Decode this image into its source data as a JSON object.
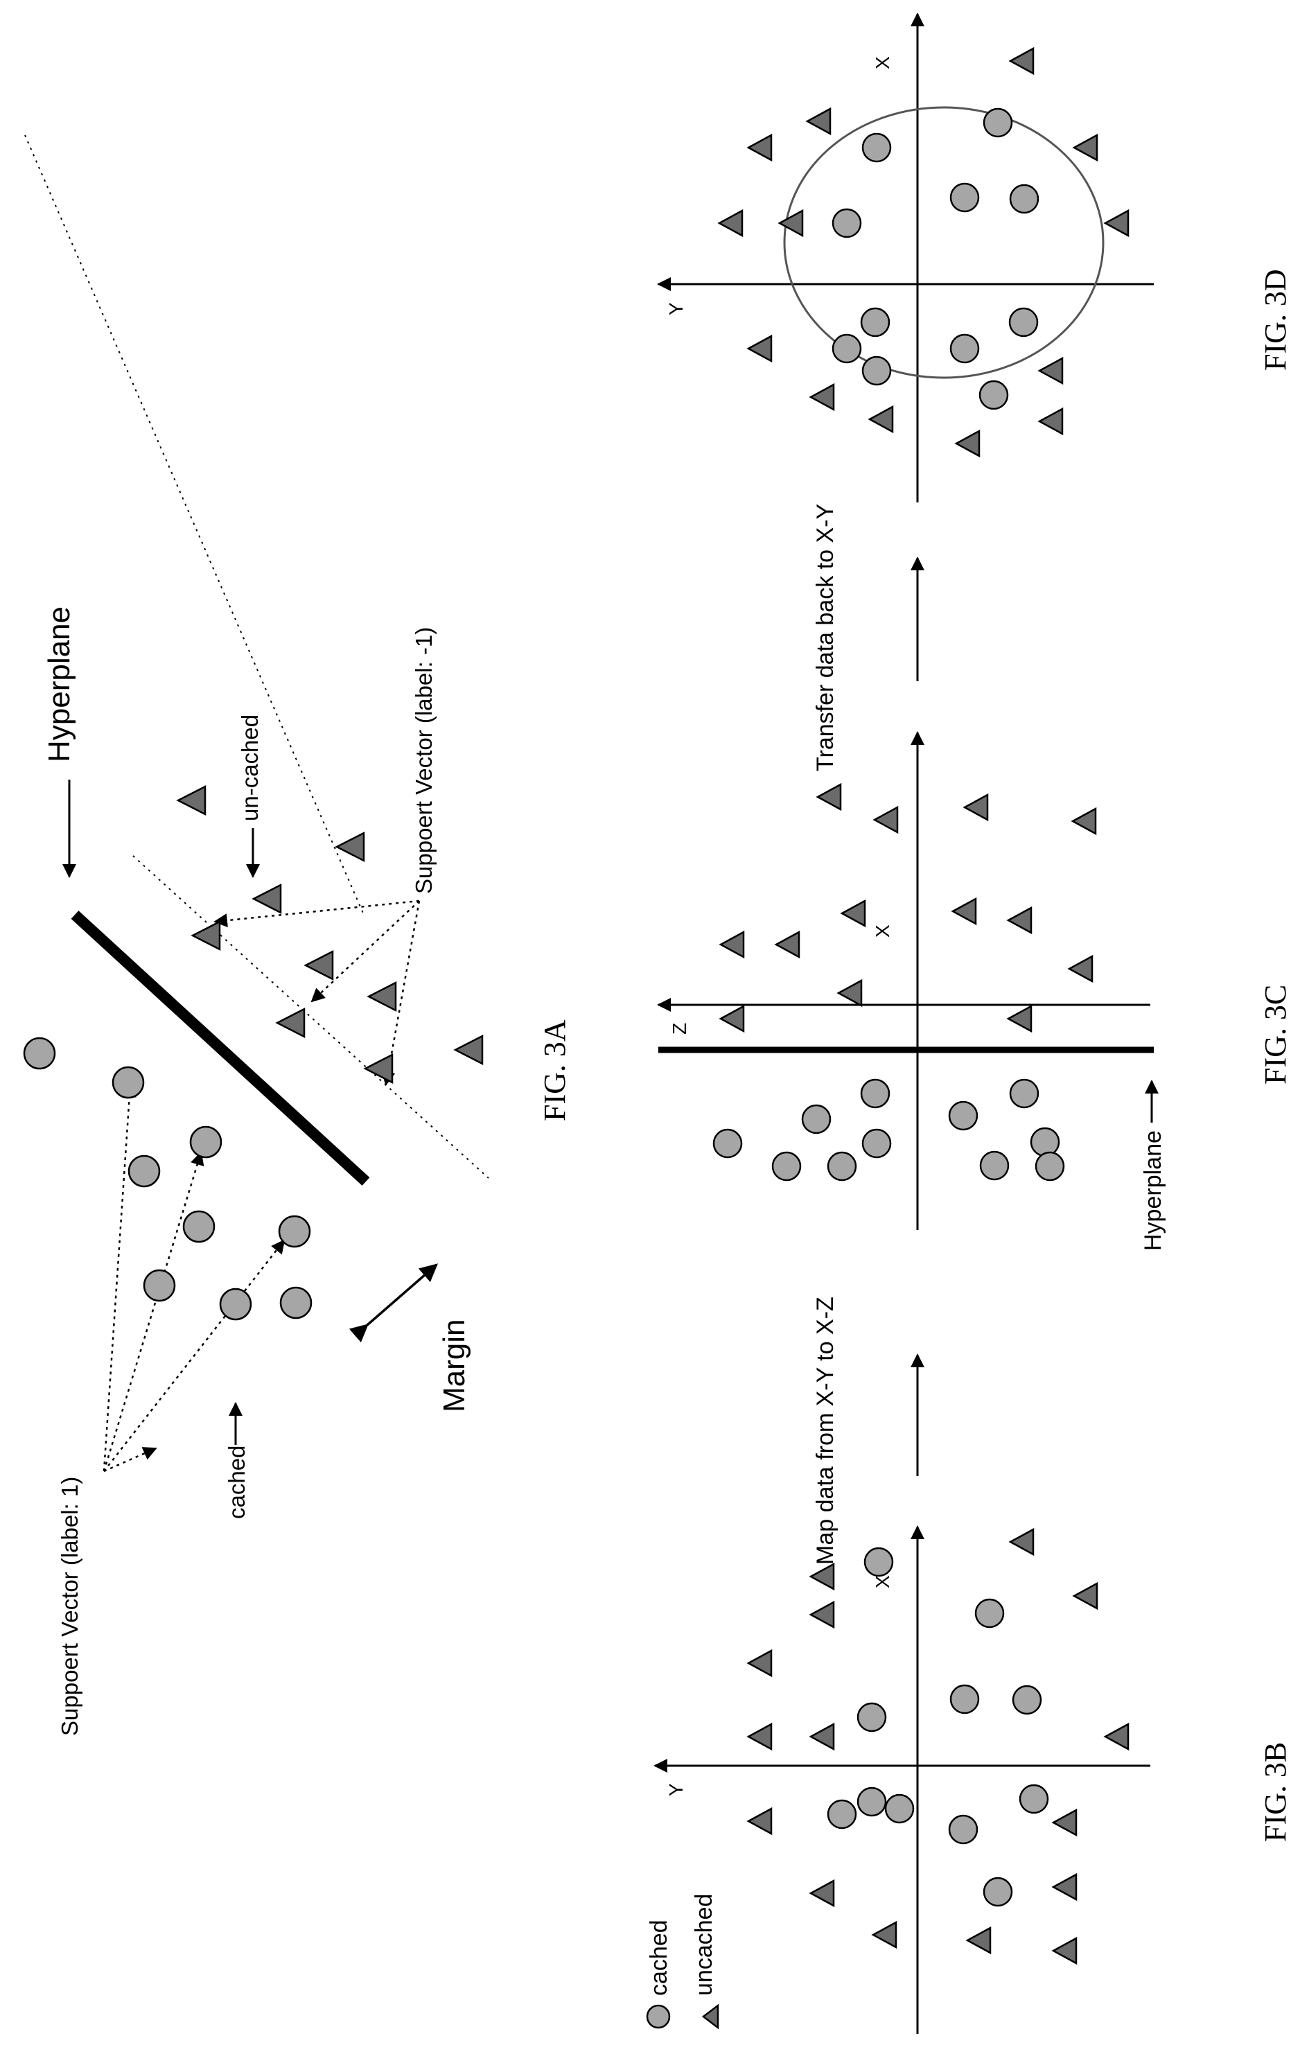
{
  "figures": {
    "fig3a": {
      "caption": "FIG. 3A",
      "labels": {
        "hyperplane": "Hyperplane",
        "uncached": "un-cached",
        "support_pos": "Suppoert Vector (label: 1)",
        "support_neg": "Suppoert Vector (label: -1)",
        "cached": "cached",
        "margin": "Margin"
      }
    },
    "fig3b": {
      "caption": "FIG. 3B",
      "axis_x": "X",
      "axis_y": "Y",
      "legend": {
        "cached": "cached",
        "uncached": "uncached"
      }
    },
    "fig3c": {
      "caption": "FIG. 3C",
      "axis_x": "X",
      "axis_z": "Z",
      "hyperplane": "Hyperplane"
    },
    "fig3d": {
      "caption": "FIG. 3D",
      "axis_x": "X",
      "axis_y": "Y"
    },
    "transitions": {
      "map": "Map data from X-Y to X-Z",
      "transfer": "Transfer data back to X-Y"
    }
  },
  "colors": {
    "cached_fill": "#a6a6a6",
    "uncached_fill": "#6b6b6b",
    "ink": "#000000"
  }
}
